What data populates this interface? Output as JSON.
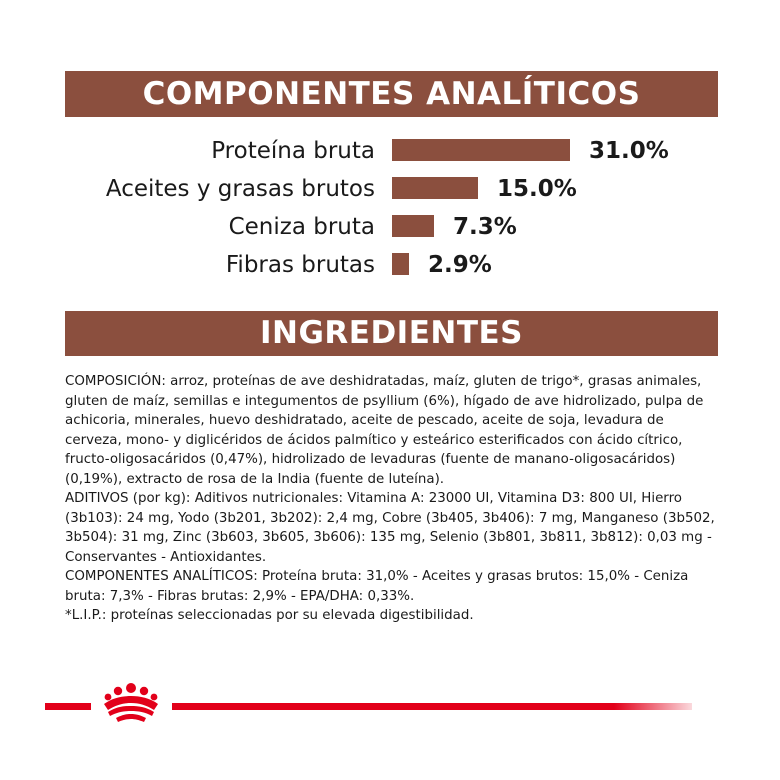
{
  "analytics": {
    "title": "COMPONENTES ANALÍTICOS",
    "bar_color": "#8b4f3e",
    "items": [
      {
        "label": "Proteína bruta",
        "value": 31.0,
        "display": "31.0%"
      },
      {
        "label": "Aceites y grasas brutos",
        "value": 15.0,
        "display": "15.0%"
      },
      {
        "label": "Ceniza bruta",
        "value": 7.3,
        "display": "7.3%"
      },
      {
        "label": "Fibras brutas",
        "value": 2.9,
        "display": "2.9%"
      }
    ]
  },
  "ingredients": {
    "title": "INGREDIENTES",
    "paragraphs": [
      "COMPOSICIÓN: arroz, proteínas de ave deshidratadas, maíz, gluten de trigo*, grasas animales, gluten de maíz, semillas e integumentos de psyllium (6%), hígado de ave hidrolizado, pulpa de achicoria, minerales, huevo deshidratado, aceite de pescado, aceite de soja, levadura de cerveza, mono- y diglicéridos de ácidos palmítico y esteárico esterificados con ácido cítrico, fructo-oligosacáridos (0,47%), hidrolizado de levaduras (fuente de manano-oligosacáridos) (0,19%), extracto de rosa de la India (fuente de luteína).",
      "ADITIVOS (por kg): Aditivos nutricionales: Vitamina A: 23000 UI, Vitamina D3: 800 UI, Hierro (3b103): 24 mg, Yodo (3b201, 3b202): 2,4 mg, Cobre (3b405, 3b406): 7 mg, Manganeso (3b502, 3b504): 31 mg, Zinc (3b603, 3b605, 3b606): 135 mg, Selenio (3b801, 3b811, 3b812): 0,03 mg - Conservantes - Antioxidantes.",
      "COMPONENTES ANALÍTICOS: Proteína bruta: 31,0% - Aceites y grasas brutos: 15,0% - Ceniza bruta: 7,3% - Fibras brutas: 2,9% - EPA/DHA: 0,33%.",
      "*L.I.P.: proteínas seleccionadas por su elevada digestibilidad."
    ]
  },
  "footer": {
    "brand_icon": "royal-canin-crown-icon",
    "accent_color": "#e2001a"
  }
}
